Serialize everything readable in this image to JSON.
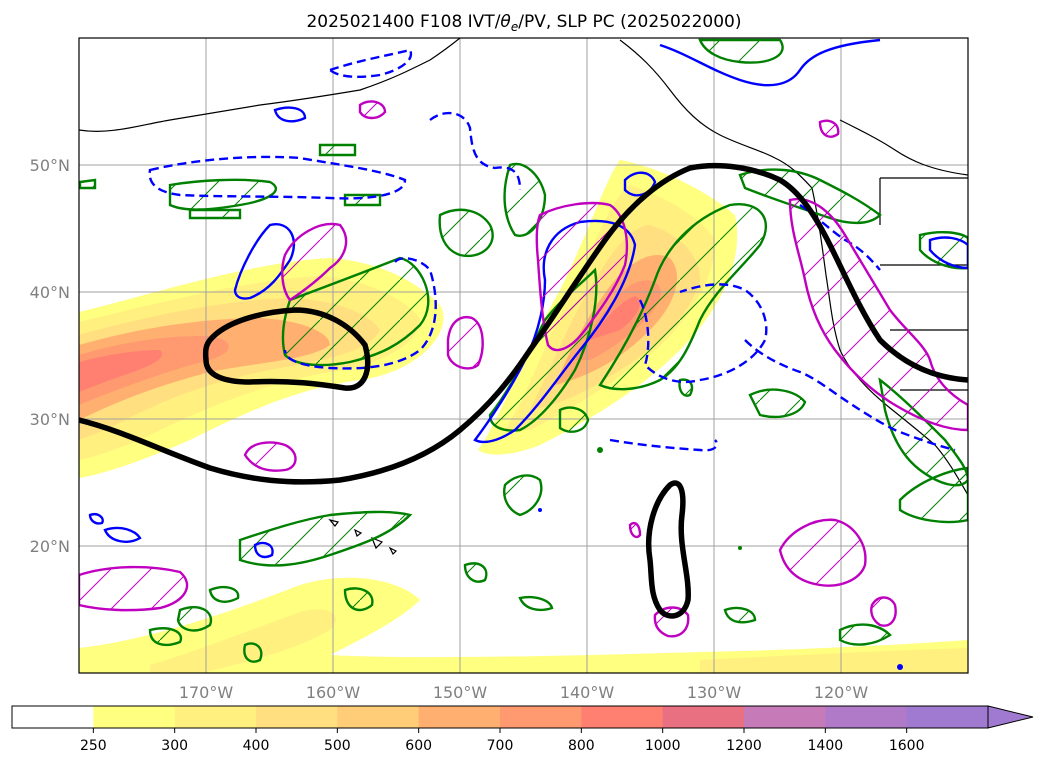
{
  "chart_data": {
    "type": "map",
    "title": "2025021400 F108 IVT/θe/PV, SLP PC (2025022000)",
    "title_parts": {
      "prefix": "2025021400 F108 IVT/",
      "theta": "θ",
      "theta_sub": "e",
      "suffix": "/PV, SLP PC (2025022000)"
    },
    "lon_ticks": [
      "170°W",
      "160°W",
      "150°W",
      "140°W",
      "130°W",
      "120°W"
    ],
    "lon_values": [
      -170,
      -160,
      -150,
      -140,
      -130,
      -120
    ],
    "lat_ticks": [
      "50°N",
      "40°N",
      "30°N",
      "20°N"
    ],
    "lat_values": [
      50,
      40,
      30,
      20
    ],
    "lon_range": [
      -180,
      -110
    ],
    "lat_range": [
      10,
      60
    ],
    "grid": true,
    "colorbar": {
      "levels": [
        "250",
        "300",
        "400",
        "500",
        "600",
        "700",
        "800",
        "1000",
        "1200",
        "1400",
        "1600"
      ],
      "colors": [
        "#ffffff",
        "#ffff80",
        "#fff080",
        "#ffdf80",
        "#ffcc78",
        "#ffb070",
        "#ff9a70",
        "#ff8070",
        "#e87080",
        "#c67ab8",
        "#b07ac8",
        "#a07ad0"
      ],
      "extend": "max"
    },
    "ivt_shading": [
      {
        "region": "central Pacific plume",
        "max_range": "800-1000"
      },
      {
        "region": "eastern Pacific plume near 40N 140W",
        "max_range": "800-1000"
      },
      {
        "region": "subtropical band 15N",
        "max_range": "250-400"
      }
    ],
    "contours": [
      {
        "name": "SLP PC",
        "color": "#000000",
        "style": "solid thick"
      },
      {
        "name": "theta_e",
        "color": "#0000ff",
        "style": "solid / dashed"
      },
      {
        "name": "IVT",
        "color": "#008000",
        "style": "solid hatched"
      },
      {
        "name": "PV",
        "color": "#c000c0",
        "style": "solid hatched"
      }
    ]
  }
}
